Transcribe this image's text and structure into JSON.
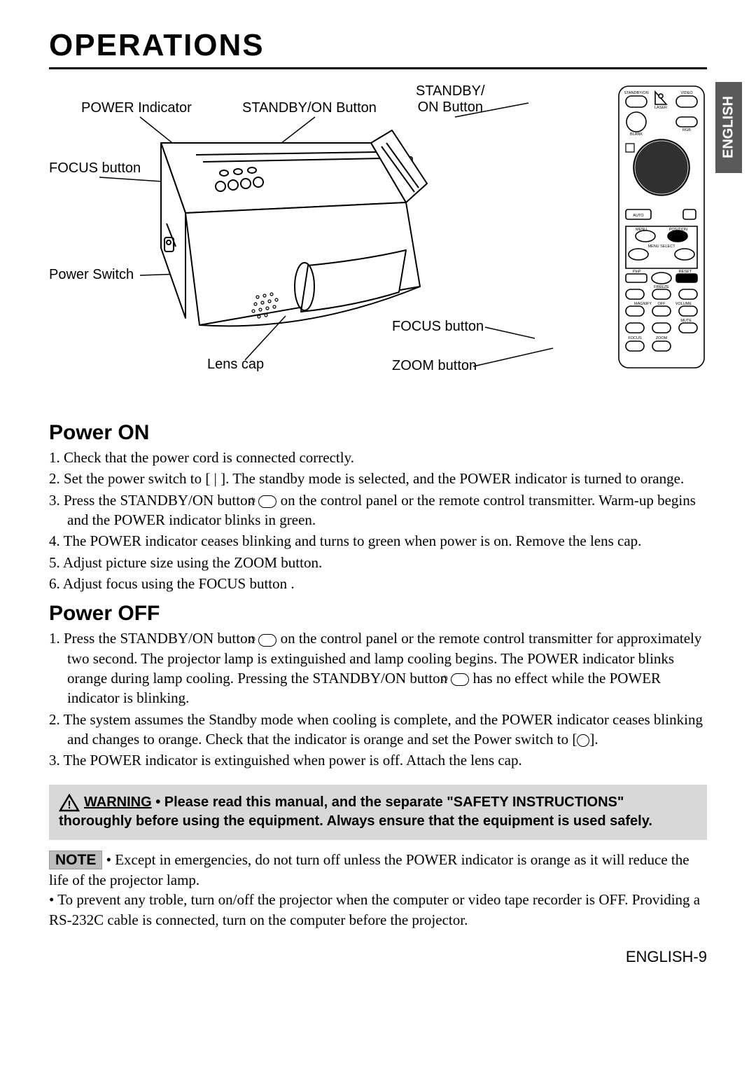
{
  "title": "OPERATIONS",
  "language_tab": "ENGLISH",
  "diagram": {
    "labels": {
      "power_indicator": "POWER Indicator",
      "standby_on_button": "STANDBY/ON Button",
      "standby_on_button_remote": "STANDBY/\nON Button",
      "focus_button": "FOCUS button",
      "zoom_button": "ZOOM button",
      "power_switch": "Power Switch",
      "lens_cap": "Lens cap",
      "focus_button_remote": "FOCUS button",
      "zoom_button_remote": "ZOOM button"
    },
    "remote_tiny_labels": [
      "STANDBY/ON",
      "LASER",
      "VIDEO",
      "BLANK",
      "RGB",
      "AUTO",
      "MENU",
      "POSITION",
      "MENU SELECT",
      "PinP",
      "RESET",
      "FREEZE",
      "MAGNIFY",
      "OFF",
      "VOLUME",
      "MUTE",
      "FOCUS",
      "ZOOM"
    ]
  },
  "sections": {
    "power_on": {
      "heading": "Power ON",
      "items": [
        "Check that the power cord is connected correctly.",
        "Set the power switch to [ | ]. The standby mode is selected, and the POWER indicator is turned to orange.",
        "Press the STANDBY/ON button __ICON__ on the control panel or the remote control transmitter. Warm-up begins and the POWER indicator blinks in green.",
        "The POWER indicator ceases blinking and turns to green when power is on. Remove the lens cap.",
        "Adjust picture size using the ZOOM button.",
        "Adjust focus using the FOCUS button ."
      ]
    },
    "power_off": {
      "heading": "Power OFF",
      "items": [
        "Press the STANDBY/ON button __ICON__ on the control panel or the remote control transmitter for approximately two second. The projector lamp is extinguished and lamp cooling begins. The POWER indicator blinks orange during lamp cooling. Pressing the STANDBY/ON button __ICON__ has no effect while the POWER indicator is blinking.",
        "The system assumes the Standby mode when cooling is complete, and the POWER indicator ceases blinking and changes to orange. Check that the indicator is orange and set the Power switch to [__CIRCLE__].",
        "The POWER indicator is extinguished when power is off. Attach the lens cap."
      ]
    }
  },
  "warning": {
    "label": "WARNING",
    "text": " • Please read this manual, and the separate \"SAFETY INSTRUCTIONS\" thoroughly before using the equipment. Always ensure that the equipment is used safely."
  },
  "note": {
    "label": "NOTE",
    "lines": [
      " • Except in emergencies, do not turn off unless the POWER indicator is orange as it will reduce the life of the projector lamp.",
      "• To prevent any troble, turn on/off the projector when the computer or video tape recorder is OFF. Providing a RS-232C cable is connected, turn on the computer before the projector."
    ]
  },
  "footer": "ENGLISH-9",
  "colors": {
    "tab_bg": "#5a5a5a",
    "warning_bg": "#d8d8d8",
    "note_bg": "#bdbdbd"
  }
}
